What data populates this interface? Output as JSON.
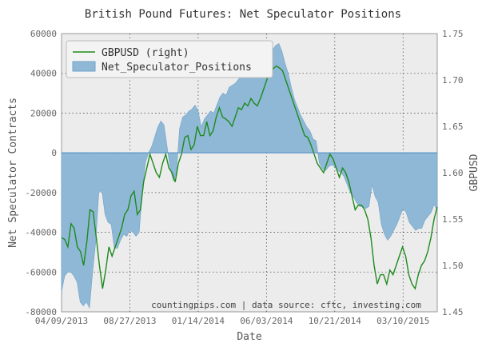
{
  "chart_data": {
    "type": "area",
    "title": "British Pound Futures: Net Speculator Positions",
    "xlabel": "Date",
    "ylabel_left": "Net Speculator Contracts",
    "ylabel_right": "GBPUSD",
    "ylim_left": [
      -80000,
      60000
    ],
    "ylim_right": [
      1.45,
      1.75
    ],
    "yticks_left": [
      "60000",
      "40000",
      "20000",
      "0",
      "-20000",
      "-40000",
      "-60000",
      "-80000"
    ],
    "yticks_right": [
      "1.75",
      "1.70",
      "1.65",
      "1.60",
      "1.55",
      "1.50",
      "1.45"
    ],
    "xticks": [
      "04/09/2013",
      "08/27/2013",
      "01/14/2014",
      "06/03/2014",
      "10/21/2014",
      "03/10/2015"
    ],
    "xrange": [
      "04/09/2013",
      "06/16/2015"
    ],
    "grid": true,
    "legend_position": "top-left",
    "annotation": "countingpips.com | data source: cftc, investing.com",
    "series": [
      {
        "name": "Net_Speculator_Positions",
        "kind": "area",
        "axis": "left",
        "color": "#8fb8d6",
        "values": [
          -70000,
          -62000,
          -60000,
          -60000,
          -62000,
          -65000,
          -75000,
          -77000,
          -75000,
          -78000,
          -60000,
          -45000,
          -20000,
          -19000,
          -31000,
          -35000,
          -36000,
          -48000,
          -48000,
          -44000,
          -41000,
          -42000,
          -39000,
          -40000,
          -42000,
          -40000,
          -20000,
          -5000,
          0,
          3000,
          8000,
          13000,
          16000,
          14000,
          3000,
          -8000,
          -14000,
          -10000,
          12000,
          18000,
          19000,
          21000,
          22000,
          24000,
          21000,
          13000,
          17000,
          19000,
          21000,
          20000,
          24000,
          28000,
          30000,
          29000,
          33000,
          34000,
          35000,
          37000,
          39000,
          41000,
          43000,
          41000,
          39000,
          38000,
          43000,
          46000,
          48000,
          50000,
          52000,
          54000,
          55000,
          51000,
          45000,
          40000,
          33000,
          27000,
          23000,
          19000,
          16000,
          13000,
          11000,
          7000,
          6000,
          -5000,
          -8000,
          -9000,
          -7000,
          -6000,
          -7000,
          -9000,
          -10000,
          -12000,
          -16000,
          -20000,
          -22000,
          -25000,
          -27000,
          -27000,
          -28000,
          -27000,
          -16000,
          -22000,
          -25000,
          -36000,
          -41000,
          -44000,
          -42000,
          -39000,
          -36000,
          -32000,
          -28000,
          -30000,
          -35000,
          -37000,
          -39000,
          -38000,
          -38000,
          -34000,
          -32000,
          -30000,
          -26000,
          -29000
        ]
      },
      {
        "name": "GBPUSD (right)",
        "kind": "line",
        "axis": "right",
        "color": "#1e8a1e",
        "values": [
          1.53,
          1.528,
          1.52,
          1.545,
          1.54,
          1.52,
          1.515,
          1.5,
          1.525,
          1.56,
          1.558,
          1.53,
          1.5,
          1.475,
          1.495,
          1.52,
          1.51,
          1.52,
          1.53,
          1.54,
          1.555,
          1.56,
          1.575,
          1.58,
          1.555,
          1.56,
          1.59,
          1.605,
          1.62,
          1.61,
          1.6,
          1.595,
          1.61,
          1.62,
          1.605,
          1.6,
          1.59,
          1.61,
          1.62,
          1.638,
          1.64,
          1.625,
          1.63,
          1.65,
          1.64,
          1.64,
          1.655,
          1.64,
          1.645,
          1.66,
          1.67,
          1.66,
          1.658,
          1.655,
          1.65,
          1.66,
          1.67,
          1.668,
          1.675,
          1.672,
          1.68,
          1.675,
          1.672,
          1.68,
          1.69,
          1.7,
          1.71,
          1.712,
          1.715,
          1.713,
          1.71,
          1.7,
          1.69,
          1.68,
          1.67,
          1.66,
          1.65,
          1.64,
          1.638,
          1.63,
          1.62,
          1.61,
          1.605,
          1.6,
          1.61,
          1.62,
          1.615,
          1.605,
          1.595,
          1.605,
          1.6,
          1.59,
          1.575,
          1.56,
          1.565,
          1.565,
          1.56,
          1.55,
          1.53,
          1.5,
          1.48,
          1.49,
          1.49,
          1.48,
          1.495,
          1.49,
          1.5,
          1.51,
          1.52,
          1.51,
          1.49,
          1.48,
          1.475,
          1.49,
          1.5,
          1.505,
          1.515,
          1.53,
          1.55,
          1.563
        ]
      }
    ]
  }
}
